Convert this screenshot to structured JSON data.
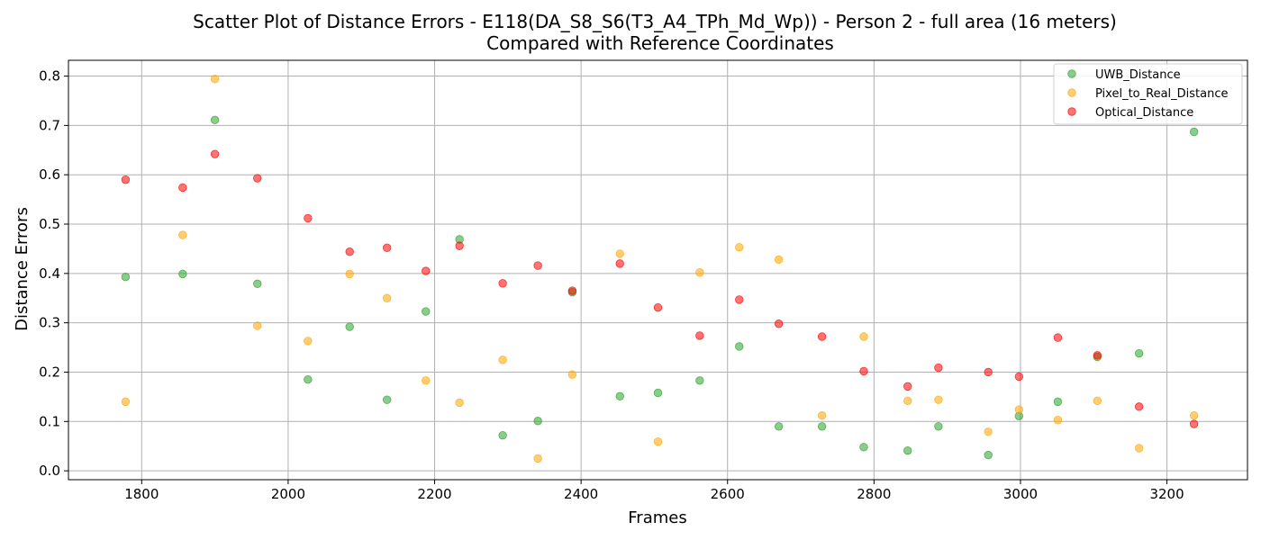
{
  "chart_data": {
    "type": "scatter",
    "title": [
      "Scatter Plot of Distance Errors - E118(DA_S8_S6(T3_A4_TPh_Md_Wp)) - Person 2 - full area (16 meters)",
      "Compared with Reference Coordinates"
    ],
    "xlabel": "Frames",
    "ylabel": "Distance Errors",
    "xlim": [
      1700,
      3310
    ],
    "ylim": [
      -0.018,
      0.832
    ],
    "xticks": [
      1800,
      2000,
      2200,
      2400,
      2600,
      2800,
      3000,
      3200
    ],
    "yticks": [
      0.0,
      0.1,
      0.2,
      0.3,
      0.4,
      0.5,
      0.6,
      0.7,
      0.8
    ],
    "grid": true,
    "legend_position": "top-right",
    "series": [
      {
        "name": "UWB_Distance",
        "color": "#2ca02c",
        "points": [
          [
            1778,
            0.393
          ],
          [
            1856,
            0.399
          ],
          [
            1900,
            0.711
          ],
          [
            1958,
            0.379
          ],
          [
            2027,
            0.185
          ],
          [
            2084,
            0.292
          ],
          [
            2135,
            0.144
          ],
          [
            2188,
            0.323
          ],
          [
            2234,
            0.469
          ],
          [
            2293,
            0.072
          ],
          [
            2341,
            0.101
          ],
          [
            2388,
            0.362
          ],
          [
            2453,
            0.151
          ],
          [
            2505,
            0.158
          ],
          [
            2562,
            0.183
          ],
          [
            2616,
            0.252
          ],
          [
            2670,
            0.09
          ],
          [
            2729,
            0.09
          ],
          [
            2786,
            0.048
          ],
          [
            2846,
            0.041
          ],
          [
            2888,
            0.09
          ],
          [
            2956,
            0.032
          ],
          [
            2998,
            0.111
          ],
          [
            3051,
            0.14
          ],
          [
            3105,
            0.231
          ],
          [
            3162,
            0.238
          ],
          [
            3237,
            0.687
          ]
        ]
      },
      {
        "name": "Pixel_to_Real_Distance",
        "color": "#ffa500",
        "points": [
          [
            1778,
            0.14
          ],
          [
            1856,
            0.478
          ],
          [
            1900,
            0.794
          ],
          [
            1958,
            0.294
          ],
          [
            2027,
            0.263
          ],
          [
            2084,
            0.399
          ],
          [
            2135,
            0.35
          ],
          [
            2188,
            0.183
          ],
          [
            2234,
            0.138
          ],
          [
            2293,
            0.225
          ],
          [
            2341,
            0.025
          ],
          [
            2388,
            0.195
          ],
          [
            2453,
            0.44
          ],
          [
            2505,
            0.059
          ],
          [
            2562,
            0.402
          ],
          [
            2616,
            0.453
          ],
          [
            2670,
            0.428
          ],
          [
            2729,
            0.112
          ],
          [
            2786,
            0.272
          ],
          [
            2846,
            0.142
          ],
          [
            2888,
            0.144
          ],
          [
            2956,
            0.079
          ],
          [
            2998,
            0.124
          ],
          [
            3051,
            0.103
          ],
          [
            3105,
            0.142
          ],
          [
            3162,
            0.046
          ],
          [
            3237,
            0.112
          ]
        ]
      },
      {
        "name": "Optical_Distance",
        "color": "#ff0000",
        "points": [
          [
            1778,
            0.59
          ],
          [
            1856,
            0.574
          ],
          [
            1900,
            0.642
          ],
          [
            1958,
            0.593
          ],
          [
            2027,
            0.512
          ],
          [
            2084,
            0.444
          ],
          [
            2135,
            0.452
          ],
          [
            2188,
            0.405
          ],
          [
            2234,
            0.456
          ],
          [
            2293,
            0.38
          ],
          [
            2341,
            0.416
          ],
          [
            2388,
            0.365
          ],
          [
            2453,
            0.42
          ],
          [
            2505,
            0.331
          ],
          [
            2562,
            0.274
          ],
          [
            2616,
            0.347
          ],
          [
            2670,
            0.298
          ],
          [
            2729,
            0.272
          ],
          [
            2786,
            0.202
          ],
          [
            2846,
            0.171
          ],
          [
            2888,
            0.209
          ],
          [
            2956,
            0.2
          ],
          [
            2998,
            0.191
          ],
          [
            3051,
            0.27
          ],
          [
            3105,
            0.234
          ],
          [
            3162,
            0.13
          ],
          [
            3237,
            0.095
          ]
        ]
      }
    ]
  }
}
